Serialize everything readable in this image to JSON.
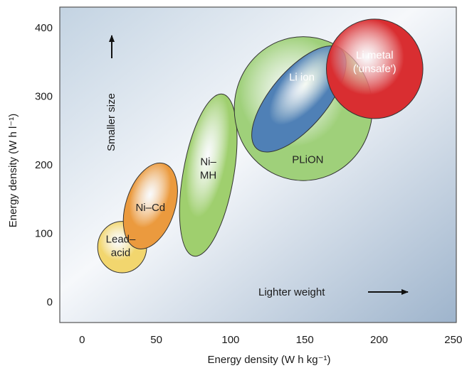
{
  "chart_data": {
    "type": "scatter",
    "xlabel": "Energy density (W h kg⁻¹)",
    "ylabel": "Energy density (W h l⁻¹)",
    "xlim": [
      -15,
      252
    ],
    "ylim": [
      -30,
      430
    ],
    "x_ticks": [
      0,
      50,
      100,
      150,
      200,
      250
    ],
    "y_ticks": [
      0,
      100,
      200,
      300,
      400
    ],
    "grid": false,
    "regions": [
      {
        "name": "Lead–acid",
        "lines": [
          "Lead–",
          "acid"
        ],
        "cx": 27,
        "cy": 80,
        "w": 33,
        "h": 75,
        "angle": 0,
        "color": "#f2d66e",
        "text_color": "#222222",
        "label_at": [
          26,
          82
        ]
      },
      {
        "name": "Ni–Cd",
        "lines": [
          "Ni–Cd"
        ],
        "cx": 46,
        "cy": 140,
        "w": 33,
        "h": 130,
        "angle": 18,
        "color": "#eb9a3e",
        "text_color": "#222222",
        "label_at": [
          46,
          138
        ]
      },
      {
        "name": "Ni–MH",
        "lines": [
          "Ni–",
          "MH"
        ],
        "cx": 85,
        "cy": 185,
        "w": 34,
        "h": 240,
        "angle": 10,
        "color": "#9fcf6e",
        "text_color": "#222222",
        "label_at": [
          85,
          195
        ]
      },
      {
        "name": "PLiON",
        "lines": [
          "PLiON"
        ],
        "cx": 149,
        "cy": 282,
        "w": 93,
        "h": 210,
        "angle": 0,
        "color": "#9fd07a",
        "text_color": "#222222",
        "label_at": [
          152,
          208
        ]
      },
      {
        "name": "Li ion",
        "lines": [
          "Li ion"
        ],
        "cx": 146,
        "cy": 296,
        "w": 38,
        "h": 190,
        "angle": 40,
        "color": "#4f80b6",
        "text_color": "#ffffff",
        "label_at": [
          148,
          328
        ]
      },
      {
        "name": "Li metal ('unsafe')",
        "lines": [
          "Li metal",
          "('unsafe')"
        ],
        "cx": 197,
        "cy": 340,
        "w": 65,
        "h": 145,
        "angle": 0,
        "color": "#d92e31",
        "text_color": "#ffffff",
        "label_at": [
          197,
          350
        ]
      }
    ],
    "annotations": {
      "smaller_size": "Smaller size",
      "lighter_weight": "Lighter weight"
    }
  }
}
